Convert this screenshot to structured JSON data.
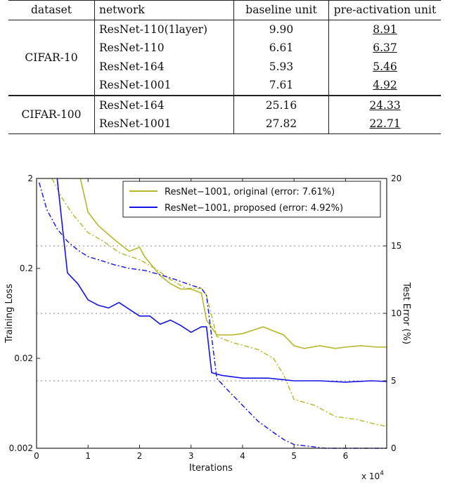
{
  "table": {
    "headers": [
      "dataset",
      "network",
      "baseline unit",
      "pre-activation unit"
    ],
    "groups": [
      {
        "dataset": "CIFAR-10",
        "rows": [
          {
            "network": "ResNet-110(1layer)",
            "baseline": "9.90",
            "preact": "8.91"
          },
          {
            "network": "ResNet-110",
            "baseline": "6.61",
            "preact": "6.37"
          },
          {
            "network": "ResNet-164",
            "baseline": "5.93",
            "preact": "5.46"
          },
          {
            "network": "ResNet-1001",
            "baseline": "7.61",
            "preact": "4.92"
          }
        ]
      },
      {
        "dataset": "CIFAR-100",
        "rows": [
          {
            "network": "ResNet-164",
            "baseline": "25.16",
            "preact": "24.33"
          },
          {
            "network": "ResNet-1001",
            "baseline": "27.82",
            "preact": "22.71"
          }
        ]
      }
    ]
  },
  "chart_data": {
    "type": "line",
    "xlabel": "Iterations",
    "x_multiplier_label": "x 10",
    "x_multiplier_exp": "4",
    "ylabel_left": "Training Loss",
    "ylabel_right": "Test Error (%)",
    "xlim": [
      0,
      6.8
    ],
    "ylim_left": [
      0.002,
      2
    ],
    "ylim_right": [
      0,
      20
    ],
    "left_scale": "log",
    "xticks": [
      "0",
      "1",
      "2",
      "3",
      "4",
      "5",
      "6"
    ],
    "yticks_left": [
      "2",
      "0.2",
      "0.02",
      "0.002"
    ],
    "yticks_right": [
      "0",
      "5",
      "10",
      "15",
      "20"
    ],
    "grid": "horizontal dotted at 5, 10, 15",
    "legend_position": "top-right",
    "colors": {
      "original": "#b5b82a",
      "proposed": "#1414e6"
    },
    "series": [
      {
        "name": "ResNet−1001, original (error: 7.61%)",
        "color": "#b5b82a",
        "test_error": {
          "x": [
            0.85,
            1.0,
            1.2,
            1.5,
            1.8,
            2.0,
            2.1,
            2.4,
            2.6,
            2.8,
            3.0,
            3.2,
            3.3,
            3.5,
            3.8,
            4.0,
            4.4,
            4.8,
            5.0,
            5.2,
            5.5,
            5.8,
            6.0,
            6.3,
            6.6,
            6.8
          ],
          "y": [
            20,
            17.5,
            16.5,
            15.5,
            14.6,
            14.9,
            14.2,
            12.8,
            12.2,
            11.8,
            11.8,
            11.5,
            9.5,
            8.4,
            8.4,
            8.5,
            9.0,
            8.4,
            7.6,
            7.4,
            7.6,
            7.4,
            7.5,
            7.6,
            7.5,
            7.5
          ]
        },
        "training_loss": {
          "x": [
            0.3,
            0.5,
            0.7,
            1.0,
            1.3,
            1.6,
            2.0,
            2.3,
            2.6,
            2.9,
            3.2,
            3.3,
            3.5,
            3.8,
            4.0,
            4.3,
            4.6,
            4.8,
            5.0,
            5.4,
            5.8,
            6.2,
            6.5,
            6.8
          ],
          "y": [
            2.0,
            1.2,
            0.8,
            0.5,
            0.4,
            0.3,
            0.25,
            0.2,
            0.15,
            0.12,
            0.12,
            0.1,
            0.035,
            0.03,
            0.028,
            0.025,
            0.02,
            0.013,
            0.007,
            0.006,
            0.0045,
            0.0042,
            0.0038,
            0.0035
          ]
        }
      },
      {
        "name": "ResNet−1001, proposed (error: 4.92%)",
        "color": "#1414e6",
        "test_error": {
          "x": [
            0.4,
            0.6,
            0.8,
            1.0,
            1.2,
            1.4,
            1.6,
            1.8,
            2.0,
            2.2,
            2.4,
            2.6,
            2.8,
            3.0,
            3.2,
            3.3,
            3.4,
            3.6,
            4.0,
            4.5,
            5.0,
            5.5,
            6.0,
            6.5,
            6.8
          ],
          "y": [
            20,
            13,
            12.2,
            11.0,
            10.6,
            10.4,
            10.8,
            10.3,
            9.8,
            9.8,
            9.2,
            9.5,
            9.1,
            8.6,
            9.0,
            9.0,
            5.6,
            5.4,
            5.2,
            5.2,
            5.0,
            5.0,
            4.9,
            5.0,
            4.95
          ]
        },
        "training_loss": {
          "x": [
            0.05,
            0.2,
            0.4,
            0.6,
            0.8,
            1.0,
            1.2,
            1.5,
            1.8,
            2.1,
            2.4,
            2.7,
            3.0,
            3.2,
            3.3,
            3.5,
            3.7,
            4.0,
            4.3,
            4.6,
            4.8,
            5.0,
            5.3,
            5.6,
            6.0,
            6.4,
            6.8
          ],
          "y": [
            1.8,
            0.9,
            0.55,
            0.4,
            0.32,
            0.27,
            0.25,
            0.22,
            0.2,
            0.19,
            0.17,
            0.15,
            0.13,
            0.12,
            0.1,
            0.012,
            0.009,
            0.006,
            0.004,
            0.003,
            0.0025,
            0.0022,
            0.0021,
            0.002,
            0.002,
            0.002,
            0.002
          ]
        }
      }
    ]
  }
}
